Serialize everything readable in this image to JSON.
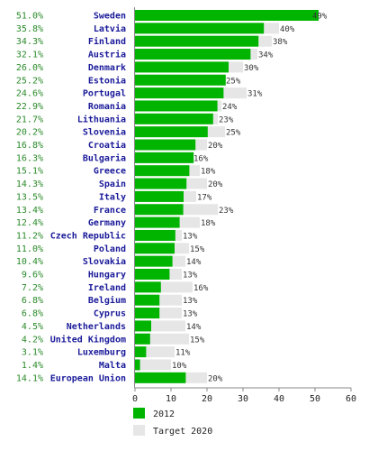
{
  "chart_data": {
    "type": "bar",
    "categories": [
      "Sweden",
      "Latvia",
      "Finland",
      "Austria",
      "Denmark",
      "Estonia",
      "Portugal",
      "Romania",
      "Lithuania",
      "Slovenia",
      "Croatia",
      "Bulgaria",
      "Greece",
      "Spain",
      "Italy",
      "France",
      "Germany",
      "Czech Republic",
      "Poland",
      "Slovakia",
      "Hungary",
      "Ireland",
      "Belgium",
      "Cyprus",
      "Netherlands",
      "United Kingdom",
      "Luxemburg",
      "Malta",
      "European Union"
    ],
    "series": [
      {
        "name": "2012",
        "values": [
          51.0,
          35.8,
          34.3,
          32.1,
          26.0,
          25.2,
          24.6,
          22.9,
          21.7,
          20.2,
          16.8,
          16.3,
          15.1,
          14.3,
          13.5,
          13.4,
          12.4,
          11.2,
          11.0,
          10.4,
          9.6,
          7.2,
          6.8,
          6.8,
          4.5,
          4.2,
          3.1,
          1.4,
          14.1
        ],
        "labels": [
          "51.0%",
          "35.8%",
          "34.3%",
          "32.1%",
          "26.0%",
          "25.2%",
          "24.6%",
          "22.9%",
          "21.7%",
          "20.2%",
          "16.8%",
          "16.3%",
          "15.1%",
          "14.3%",
          "13.5%",
          "13.4%",
          "12.4%",
          "11.2%",
          "11.0%",
          "10.4%",
          "9.6%",
          "7.2%",
          "6.8%",
          "6.8%",
          "4.5%",
          "4.2%",
          "3.1%",
          "1.4%",
          "14.1%"
        ],
        "color": "#00b400"
      },
      {
        "name": "Target 2020",
        "values": [
          49,
          40,
          38,
          34,
          30,
          25,
          31,
          24,
          23,
          25,
          20,
          16,
          18,
          20,
          17,
          23,
          18,
          13,
          15,
          14,
          13,
          16,
          13,
          13,
          14,
          15,
          11,
          10,
          20
        ],
        "labels": [
          "49%",
          "40%",
          "38%",
          "34%",
          "30%",
          "25%",
          "31%",
          "24%",
          "23%",
          "25%",
          "20%",
          "16%",
          "18%",
          "20%",
          "17%",
          "23%",
          "18%",
          "13%",
          "15%",
          "14%",
          "13%",
          "16%",
          "13%",
          "13%",
          "14%",
          "15%",
          "11%",
          "10%",
          "20%"
        ],
        "color": "#e6e6e6"
      }
    ],
    "xlim": [
      0,
      60
    ],
    "xticks": [
      "0",
      "10",
      "20",
      "30",
      "40",
      "50",
      "60"
    ],
    "legend_position": "bottom-left"
  }
}
